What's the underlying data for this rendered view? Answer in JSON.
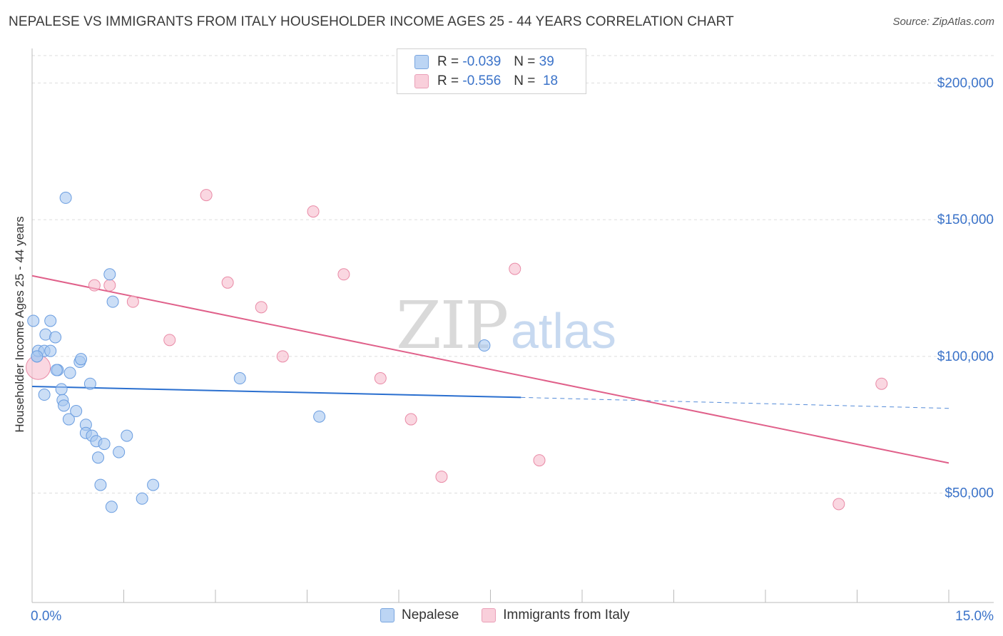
{
  "header": {
    "title": "NEPALESE VS IMMIGRANTS FROM ITALY HOUSEHOLDER INCOME AGES 25 - 44 YEARS CORRELATION CHART",
    "source": "Source: ZipAtlas.com"
  },
  "legend": {
    "series": [
      {
        "r_label": "R =",
        "r_value": "-0.039",
        "n_label": "N =",
        "n_value": "39"
      },
      {
        "r_label": "R =",
        "r_value": "-0.556",
        "n_label": "N =",
        "n_value": "18"
      }
    ]
  },
  "watermark": {
    "zip": "ZIP",
    "atlas": "atlas"
  },
  "colors": {
    "blue_fill": "#a8c8f0",
    "blue_stroke": "#6a9de0",
    "blue_line": "#2a6fcf",
    "pink_fill": "#f7bccd",
    "pink_stroke": "#e98aa6",
    "pink_line": "#e0608a",
    "axis_label": "#3b73c9",
    "grid": "#dddddd"
  },
  "chart_data": {
    "type": "scatter",
    "title": "NEPALESE VS IMMIGRANTS FROM ITALY HOUSEHOLDER INCOME AGES 25 - 44 YEARS CORRELATION CHART",
    "xlabel": "",
    "ylabel": "Householder Income Ages 25 - 44 years",
    "xlim": [
      0,
      15
    ],
    "ylim": [
      10000,
      210000
    ],
    "x_tick_labels": [
      "0.0%",
      "15.0%"
    ],
    "y_ticks": [
      50000,
      100000,
      150000,
      200000
    ],
    "y_tick_labels": [
      "$50,000",
      "$100,000",
      "$150,000",
      "$200,000"
    ],
    "series": [
      {
        "name": "Nepalese",
        "color": "#a8c8f0",
        "points": [
          [
            0.02,
            113000
          ],
          [
            0.08,
            100000
          ],
          [
            0.1,
            102000
          ],
          [
            0.2,
            102000
          ],
          [
            0.3,
            102000
          ],
          [
            0.22,
            108000
          ],
          [
            0.3,
            113000
          ],
          [
            0.38,
            107000
          ],
          [
            0.42,
            95000
          ],
          [
            0.48,
            88000
          ],
          [
            0.2,
            86000
          ],
          [
            0.5,
            84000
          ],
          [
            0.52,
            82000
          ],
          [
            0.6,
            77000
          ],
          [
            0.62,
            94000
          ],
          [
            0.72,
            80000
          ],
          [
            0.78,
            98000
          ],
          [
            0.8,
            99000
          ],
          [
            0.88,
            75000
          ],
          [
            0.88,
            72000
          ],
          [
            0.95,
            90000
          ],
          [
            0.98,
            71000
          ],
          [
            1.05,
            69000
          ],
          [
            1.08,
            63000
          ],
          [
            1.12,
            53000
          ],
          [
            1.18,
            68000
          ],
          [
            1.27,
            130000
          ],
          [
            1.3,
            45000
          ],
          [
            1.32,
            120000
          ],
          [
            1.42,
            65000
          ],
          [
            1.55,
            71000
          ],
          [
            1.8,
            48000
          ],
          [
            1.98,
            53000
          ],
          [
            0.55,
            158000
          ],
          [
            3.4,
            92000
          ],
          [
            4.7,
            78000
          ],
          [
            7.4,
            104000
          ],
          [
            0.08,
            100000
          ],
          [
            0.4,
            95000
          ]
        ],
        "trend": {
          "x": [
            0,
            8.0
          ],
          "y": [
            89000,
            85000
          ]
        },
        "trend_dashed": {
          "x": [
            8.0,
            15.0
          ],
          "y": [
            85000,
            81000
          ]
        }
      },
      {
        "name": "Immigrants from Italy",
        "color": "#f7bccd",
        "points": [
          [
            0.1,
            96000
          ],
          [
            1.02,
            126000
          ],
          [
            1.27,
            126000
          ],
          [
            1.65,
            120000
          ],
          [
            2.25,
            106000
          ],
          [
            2.85,
            159000
          ],
          [
            3.2,
            127000
          ],
          [
            3.75,
            118000
          ],
          [
            4.1,
            100000
          ],
          [
            4.6,
            153000
          ],
          [
            5.1,
            130000
          ],
          [
            5.7,
            92000
          ],
          [
            6.2,
            77000
          ],
          [
            6.7,
            56000
          ],
          [
            7.9,
            132000
          ],
          [
            8.3,
            62000
          ],
          [
            13.2,
            46000
          ],
          [
            13.9,
            90000
          ]
        ],
        "trend": {
          "x": [
            0,
            15.0
          ],
          "y": [
            129500,
            61000
          ]
        }
      }
    ],
    "legend_position": "bottom-center"
  },
  "bottom_legend": {
    "items": [
      {
        "label": "Nepalese"
      },
      {
        "label": "Immigrants from Italy"
      }
    ]
  }
}
